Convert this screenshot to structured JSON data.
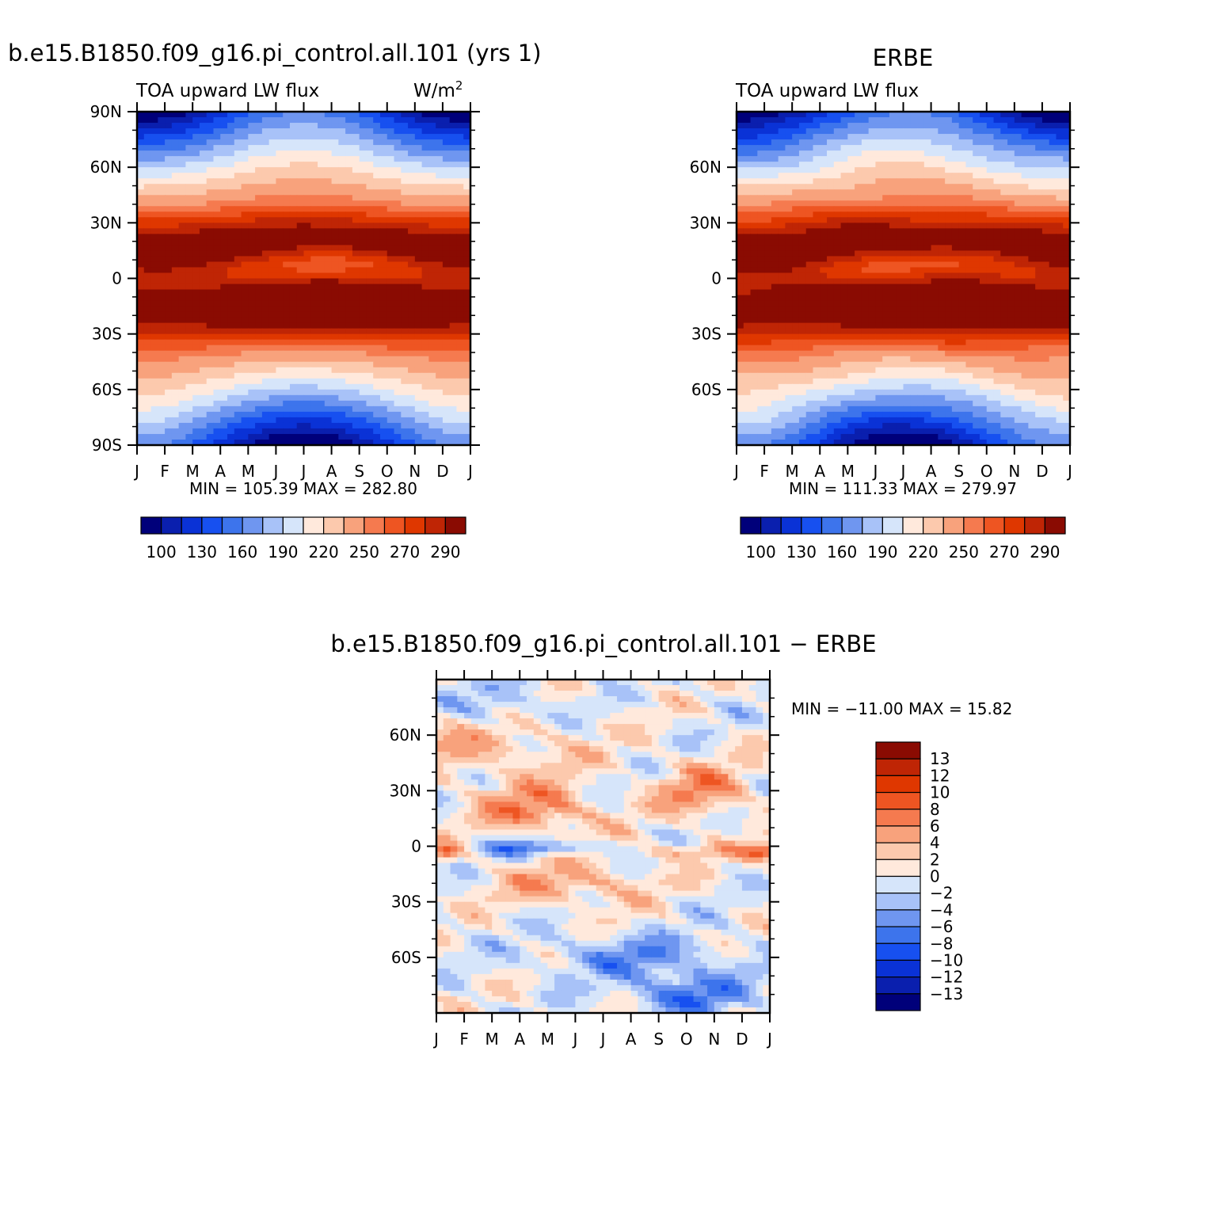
{
  "colors": {
    "abs_scale": [
      "#00007a",
      "#0a1fae",
      "#0a32d6",
      "#1750f0",
      "#3d74ec",
      "#6f96f0",
      "#a8c2f8",
      "#d6e5fa",
      "#ffe9dc",
      "#fcc9ad",
      "#f8a27c",
      "#f57a4f",
      "#ee5522",
      "#df3700",
      "#bf2505",
      "#8a0b02"
    ],
    "diff_scale": [
      "#00007a",
      "#0a1fae",
      "#0a32d6",
      "#1750f0",
      "#3d74ec",
      "#6f96f0",
      "#a8c2f8",
      "#d6e5fa",
      "#ffe9dc",
      "#fcc9ad",
      "#f8a27c",
      "#f57a4f",
      "#ee5522",
      "#df3700",
      "#bf2505",
      "#8a0b02"
    ]
  },
  "chart_data": [
    {
      "type": "heatmap",
      "title": "b.e15.B1850.f09_g16.pi_control.all.101 (yrs 1)",
      "subtitle_left": "TOA upward LW flux",
      "units": "W/m",
      "units_sup": "2",
      "x_ticks": [
        "J",
        "F",
        "M",
        "A",
        "M",
        "J",
        "J",
        "A",
        "S",
        "O",
        "N",
        "D",
        "J"
      ],
      "y_ticks": [
        "90N",
        "60N",
        "30N",
        "0",
        "30S",
        "60S",
        "90S"
      ],
      "y_tick_values": [
        90,
        60,
        30,
        0,
        -30,
        -60,
        -90
      ],
      "ylim": [
        -90,
        90
      ],
      "min_max_text": "MIN = 105.39 MAX = 282.80",
      "colorbar_labels": [
        "100",
        "130",
        "160",
        "190",
        "220",
        "250",
        "270",
        "290"
      ],
      "levels": [
        100,
        115,
        130,
        145,
        160,
        175,
        190,
        205,
        220,
        235,
        250,
        260,
        270,
        280,
        290
      ]
    },
    {
      "type": "heatmap",
      "title": "ERBE",
      "subtitle_left": "TOA upward LW flux",
      "x_ticks": [
        "J",
        "F",
        "M",
        "A",
        "M",
        "J",
        "J",
        "A",
        "S",
        "O",
        "N",
        "D",
        "J"
      ],
      "y_ticks": [
        "60N",
        "30N",
        "0",
        "30S",
        "60S"
      ],
      "y_tick_values": [
        60,
        30,
        0,
        -30,
        -60
      ],
      "ylim": [
        -90,
        90
      ],
      "min_max_text": "MIN = 111.33 MAX = 279.97",
      "colorbar_labels": [
        "100",
        "130",
        "160",
        "190",
        "220",
        "250",
        "270",
        "290"
      ],
      "levels": [
        100,
        115,
        130,
        145,
        160,
        175,
        190,
        205,
        220,
        235,
        250,
        260,
        270,
        280,
        290
      ]
    },
    {
      "type": "heatmap",
      "title": "b.e15.B1850.f09_g16.pi_control.all.101 − ERBE",
      "x_ticks": [
        "J",
        "F",
        "M",
        "A",
        "M",
        "J",
        "J",
        "A",
        "S",
        "O",
        "N",
        "D",
        "J"
      ],
      "y_ticks": [
        "60N",
        "30N",
        "0",
        "30S",
        "60S"
      ],
      "y_tick_values": [
        60,
        30,
        0,
        -30,
        -60
      ],
      "ylim": [
        -90,
        90
      ],
      "min_max_text": "MIN = −11.00 MAX =   15.82",
      "colorbar_labels": [
        "13",
        "12",
        "10",
        "8",
        "6",
        "4",
        "2",
        "0",
        "−2",
        "−4",
        "−6",
        "−8",
        "−10",
        "−12",
        "−13"
      ],
      "levels": [
        -13,
        -12,
        -10,
        -8,
        -6,
        -4,
        -2,
        0,
        2,
        4,
        6,
        8,
        10,
        12,
        13
      ]
    }
  ]
}
